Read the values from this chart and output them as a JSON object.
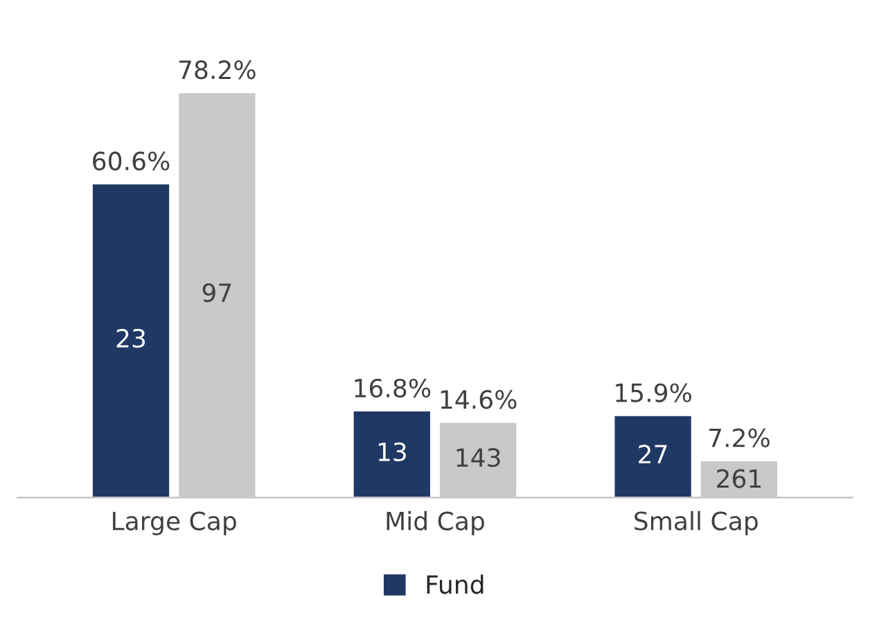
{
  "chart_data": {
    "type": "bar",
    "categories": [
      "Large Cap",
      "Mid Cap",
      "Small Cap"
    ],
    "series": [
      {
        "name": "Fund",
        "color": "#203864",
        "values": [
          60.6,
          16.8,
          15.9
        ],
        "value_labels": [
          "60.6%",
          "16.8%",
          "15.9%"
        ]
      },
      {
        "color": "#c9c9c9",
        "values": [
          78.2,
          14.6,
          7.2
        ],
        "value_labels": [
          "78.2%",
          "14.6%",
          "7.2%"
        ]
      }
    ],
    "annotations": [
      "23",
      "13",
      "27",
      "97",
      "143",
      "261"
    ],
    "legend": "bottom",
    "grid": false,
    "tick_labels": "x"
  }
}
